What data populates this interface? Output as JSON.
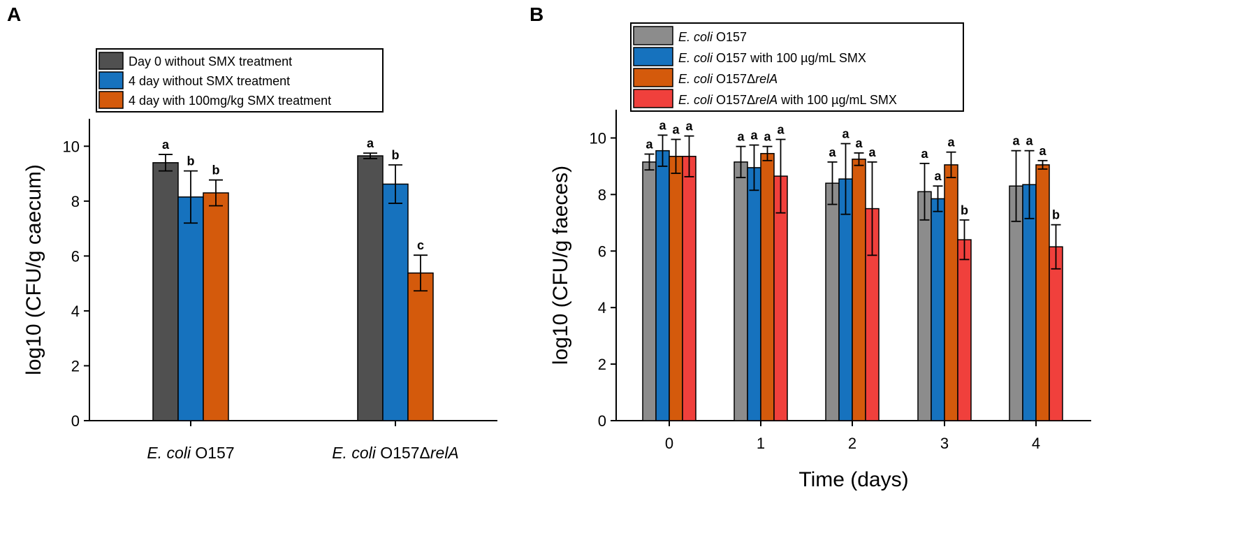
{
  "chart_data": [
    {
      "panel": "A",
      "type": "bar",
      "xlabel": "",
      "ylabel": "log10 (CFU/g caecum)",
      "ylim": [
        0,
        11
      ],
      "yticks": [
        0,
        2,
        4,
        6,
        8,
        10
      ],
      "legend_position": "top-left",
      "categories": [
        {
          "parts": [
            {
              "text": "E. coli",
              "italic": true
            },
            {
              "text": " O157",
              "italic": false
            }
          ]
        },
        {
          "parts": [
            {
              "text": "E. coli",
              "italic": true
            },
            {
              "text": " O157Δ",
              "italic": false
            },
            {
              "text": "relA",
              "italic": true
            }
          ]
        }
      ],
      "series": [
        {
          "name": "Day 0 without SMX treatment",
          "color": "#505050",
          "values": [
            9.4,
            9.65
          ],
          "errors": [
            0.3,
            0.1
          ],
          "labels": [
            "a",
            "a"
          ]
        },
        {
          "name": "4 day without SMX treatment",
          "color": "#1672be",
          "values": [
            8.15,
            8.62
          ],
          "errors": [
            0.95,
            0.7
          ],
          "labels": [
            "b",
            "b"
          ]
        },
        {
          "name": "4 day with 100mg/kg SMX treatment",
          "color": "#d45a0c",
          "values": [
            8.3,
            5.38
          ],
          "errors": [
            0.47,
            0.65
          ],
          "labels": [
            "b",
            "c"
          ]
        }
      ]
    },
    {
      "panel": "B",
      "type": "bar",
      "xlabel": "Time (days)",
      "ylabel": "log10 (CFU/g faeces)",
      "ylim": [
        0,
        11
      ],
      "yticks": [
        0,
        2,
        4,
        6,
        8,
        10
      ],
      "legend_position": "top-left",
      "categories": [
        {
          "parts": [
            {
              "text": "0",
              "italic": false
            }
          ]
        },
        {
          "parts": [
            {
              "text": "1",
              "italic": false
            }
          ]
        },
        {
          "parts": [
            {
              "text": "2",
              "italic": false
            }
          ]
        },
        {
          "parts": [
            {
              "text": "3",
              "italic": false
            }
          ]
        },
        {
          "parts": [
            {
              "text": "4",
              "italic": false
            }
          ]
        }
      ],
      "series": [
        {
          "name": "E. coli O157",
          "legend_parts": [
            {
              "text": "E. coli",
              "italic": true
            },
            {
              "text": " O157",
              "italic": false
            }
          ],
          "color": "#8c8c8c",
          "values": [
            9.15,
            9.15,
            8.4,
            8.1,
            8.3
          ],
          "errors": [
            0.28,
            0.55,
            0.75,
            1.0,
            1.25
          ],
          "labels": [
            "a",
            "a",
            "a",
            "a",
            "a"
          ]
        },
        {
          "name": "E. coli O157 with 100 µg/mL SMX",
          "legend_parts": [
            {
              "text": "E. coli",
              "italic": true
            },
            {
              "text": " O157 with 100 µg/mL SMX",
              "italic": false
            }
          ],
          "color": "#1672be",
          "values": [
            9.55,
            8.95,
            8.55,
            7.85,
            8.35
          ],
          "errors": [
            0.55,
            0.8,
            1.25,
            0.45,
            1.2
          ],
          "labels": [
            "a",
            "a",
            "a",
            "a",
            "a"
          ]
        },
        {
          "name": "E. coli O157ΔrelA",
          "legend_parts": [
            {
              "text": "E. coli",
              "italic": true
            },
            {
              "text": " O157Δ",
              "italic": false
            },
            {
              "text": "relA",
              "italic": true
            }
          ],
          "color": "#d45a0c",
          "values": [
            9.35,
            9.45,
            9.25,
            9.05,
            9.05
          ],
          "errors": [
            0.6,
            0.25,
            0.22,
            0.45,
            0.15
          ],
          "labels": [
            "a",
            "a",
            "a",
            "a",
            "a"
          ]
        },
        {
          "name": "E. coli O157ΔrelA with 100 µg/mL SMX",
          "legend_parts": [
            {
              "text": "E. coli",
              "italic": true
            },
            {
              "text": " O157Δ",
              "italic": false
            },
            {
              "text": "relA",
              "italic": true
            },
            {
              "text": " with 100 µg/mL SMX",
              "italic": false
            }
          ],
          "color": "#f0403c",
          "values": [
            9.35,
            8.65,
            7.5,
            6.4,
            6.15
          ],
          "errors": [
            0.72,
            1.3,
            1.65,
            0.7,
            0.78
          ],
          "labels": [
            "a",
            "a",
            "a",
            "b",
            "b"
          ]
        }
      ]
    }
  ]
}
